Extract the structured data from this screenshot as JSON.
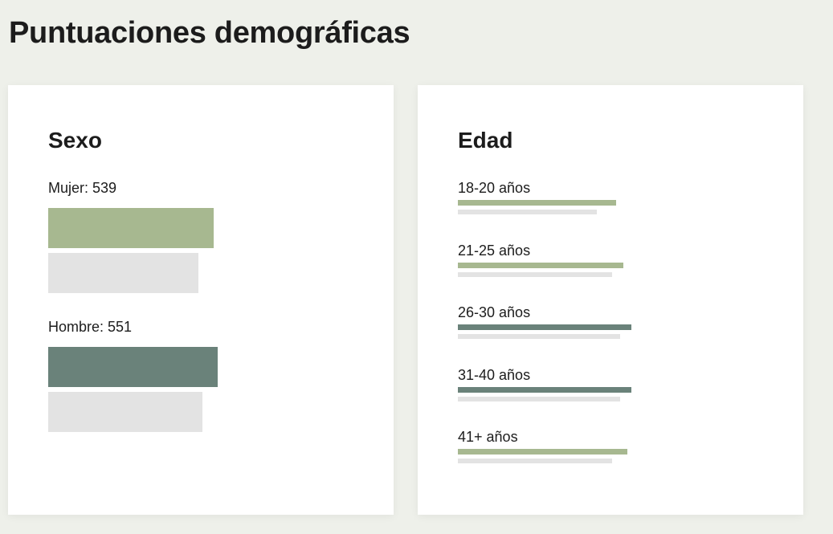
{
  "page": {
    "title": "Puntuaciones demográficas"
  },
  "colors": {
    "light_green": "#a7b890",
    "dark_green": "#6a827a",
    "compare_gray": "#e3e3e3",
    "background": "#eef0ea"
  },
  "sex_card": {
    "title": "Sexo",
    "items": [
      {
        "label": "Mujer: 539",
        "primary_fraction": 0.43,
        "compare_fraction": 0.39,
        "color": "light_green"
      },
      {
        "label": "Hombre: 551",
        "primary_fraction": 0.44,
        "compare_fraction": 0.4,
        "color": "dark_green"
      }
    ]
  },
  "age_card": {
    "title": "Edad",
    "items": [
      {
        "label": "18-20 años",
        "primary_fraction": 0.41,
        "compare_fraction": 0.36,
        "color": "light_green"
      },
      {
        "label": "21-25 años",
        "primary_fraction": 0.43,
        "compare_fraction": 0.4,
        "color": "light_green"
      },
      {
        "label": "26-30 años",
        "primary_fraction": 0.45,
        "compare_fraction": 0.42,
        "color": "dark_green"
      },
      {
        "label": "31-40 años",
        "primary_fraction": 0.45,
        "compare_fraction": 0.42,
        "color": "dark_green"
      },
      {
        "label": "41+ años",
        "primary_fraction": 0.44,
        "compare_fraction": 0.4,
        "color": "light_green"
      }
    ]
  }
}
